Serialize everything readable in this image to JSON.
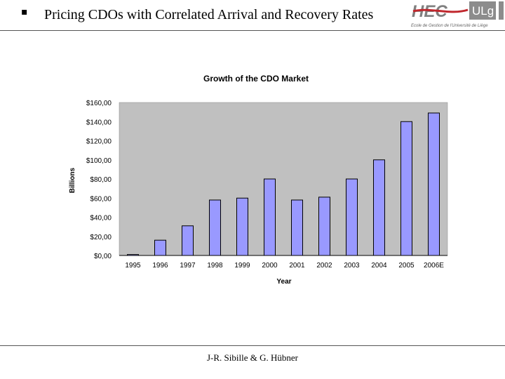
{
  "header": {
    "bullet": "▪",
    "title": "Pricing CDOs with Correlated Arrival and Recovery Rates",
    "logo_text": "HEC",
    "logo_badge": "ULg",
    "logo_subtitle": "Ecole de Gestion de l'Université de Liège"
  },
  "footer": {
    "authors": "J-R. Sibille & G. Hübner"
  },
  "colors": {
    "bar": "#9999ff",
    "plot_bg": "#c0c0c0",
    "logo_red": "#c0272d",
    "logo_gray": "#808080"
  },
  "chart_data": {
    "type": "bar",
    "title": "Growth of the CDO Market",
    "xlabel": "Year",
    "ylabel": "Billions",
    "categories": [
      "1995",
      "1996",
      "1997",
      "1998",
      "1999",
      "2000",
      "2001",
      "2002",
      "2003",
      "2004",
      "2005",
      "2006E"
    ],
    "values": [
      1,
      16,
      31,
      58,
      60,
      80,
      58,
      61,
      80,
      100,
      140,
      149
    ],
    "ylim": [
      0,
      160
    ],
    "yticks": [
      "$0,00",
      "$20,00",
      "$40,00",
      "$60,00",
      "$80,00",
      "$100,00",
      "$120,00",
      "$140,00",
      "$160,00"
    ],
    "grid": false,
    "legend": "none"
  }
}
